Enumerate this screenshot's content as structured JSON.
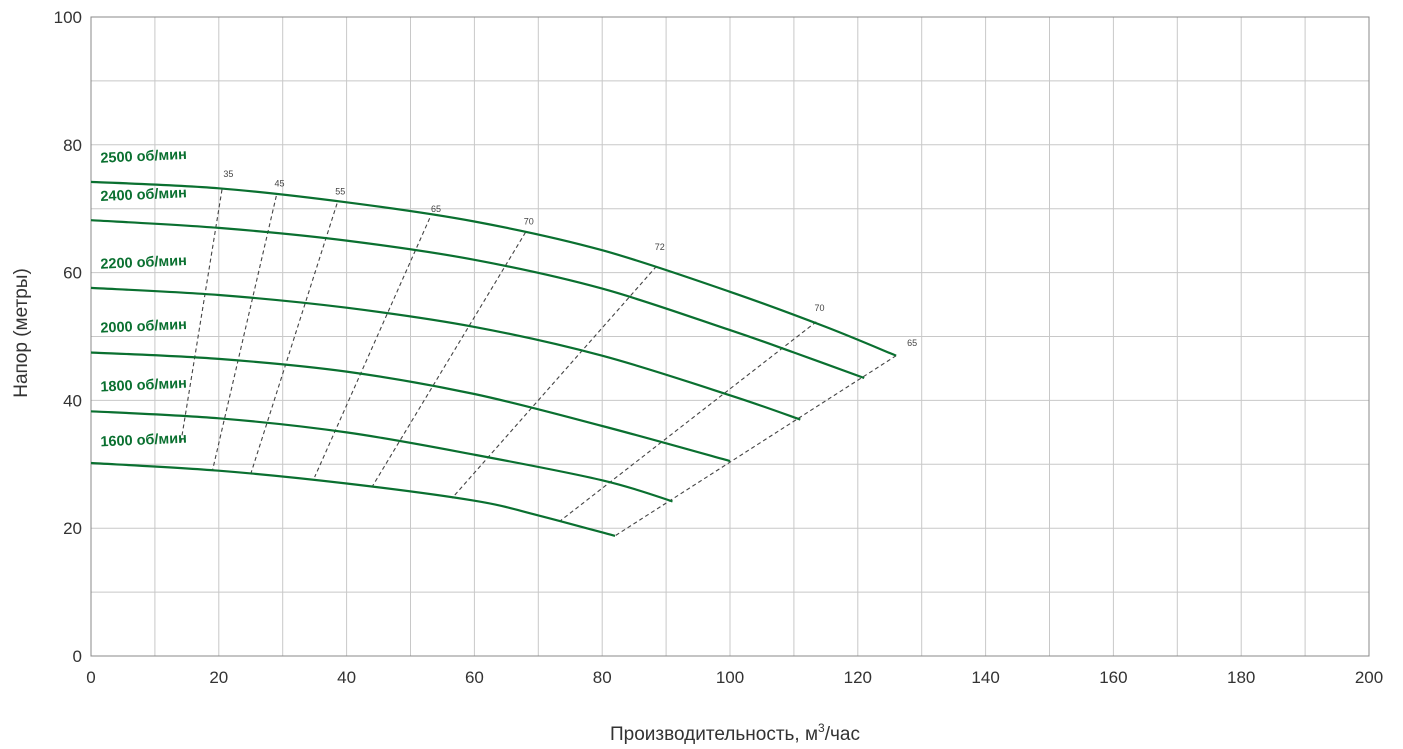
{
  "chart_data": {
    "type": "line",
    "xlabel_main": "Производительность, м",
    "xlabel_sup": "3",
    "xlabel_tail": "/час",
    "ylabel": "Напор (метры)",
    "xlim": [
      0,
      200
    ],
    "ylim": [
      0,
      100
    ],
    "x_ticks": [
      "0",
      "20",
      "40",
      "60",
      "80",
      "100",
      "120",
      "140",
      "160",
      "180",
      "200"
    ],
    "y_ticks": [
      "0",
      "20",
      "40",
      "60",
      "80",
      "100"
    ],
    "grid": true,
    "colors": {
      "curve": "#0a7030",
      "label": "#0a7030",
      "grid": "#c8c8c8",
      "frame": "#888888",
      "dash": "#444444"
    },
    "series": [
      {
        "name": "2500 об/мин",
        "label_pos": [
          1.5,
          77.2
        ],
        "points": [
          [
            0,
            74.2
          ],
          [
            20,
            73.2
          ],
          [
            40,
            71.0
          ],
          [
            60,
            68.0
          ],
          [
            80,
            63.5
          ],
          [
            100,
            57.0
          ],
          [
            115,
            51.5
          ],
          [
            126,
            47.0
          ]
        ]
      },
      {
        "name": "2400 об/мин",
        "label_pos": [
          1.5,
          71.2
        ],
        "points": [
          [
            0,
            68.2
          ],
          [
            20,
            67.0
          ],
          [
            40,
            65.0
          ],
          [
            60,
            62.0
          ],
          [
            80,
            57.5
          ],
          [
            100,
            51.0
          ],
          [
            110,
            47.5
          ],
          [
            121,
            43.5
          ]
        ]
      },
      {
        "name": "2200 об/мин",
        "label_pos": [
          1.5,
          60.6
        ],
        "points": [
          [
            0,
            57.6
          ],
          [
            20,
            56.5
          ],
          [
            40,
            54.5
          ],
          [
            60,
            51.5
          ],
          [
            80,
            47.0
          ],
          [
            100,
            40.8
          ],
          [
            111,
            37.0
          ]
        ]
      },
      {
        "name": "2000 об/мин",
        "label_pos": [
          1.5,
          50.6
        ],
        "points": [
          [
            0,
            47.5
          ],
          [
            20,
            46.5
          ],
          [
            40,
            44.5
          ],
          [
            60,
            41.0
          ],
          [
            80,
            36.0
          ],
          [
            100,
            30.5
          ]
        ]
      },
      {
        "name": "1800 об/мин",
        "label_pos": [
          1.5,
          41.4
        ],
        "points": [
          [
            0,
            38.3
          ],
          [
            20,
            37.2
          ],
          [
            40,
            35.0
          ],
          [
            60,
            31.5
          ],
          [
            80,
            27.5
          ],
          [
            91,
            24.2
          ]
        ]
      },
      {
        "name": "1600 об/мин",
        "label_pos": [
          1.5,
          32.8
        ],
        "points": [
          [
            0,
            30.2
          ],
          [
            20,
            29.0
          ],
          [
            40,
            27.0
          ],
          [
            60,
            24.3
          ],
          [
            70,
            22.0
          ],
          [
            82,
            18.8
          ]
        ]
      }
    ],
    "efficiency_lines": [
      {
        "label": "35",
        "label_pos": [
          21.5,
          75.0
        ],
        "points": [
          [
            20.5,
            73.0
          ],
          [
            14,
            33.0
          ]
        ]
      },
      {
        "label": "45",
        "label_pos": [
          29.5,
          73.5
        ],
        "points": [
          [
            29,
            72.0
          ],
          [
            19,
            29.0
          ]
        ]
      },
      {
        "label": "55",
        "label_pos": [
          39,
          72.2
        ],
        "points": [
          [
            38.5,
            70.8
          ],
          [
            25,
            28.5
          ]
        ]
      },
      {
        "label": "65",
        "label_pos": [
          54,
          69.5
        ],
        "points": [
          [
            53,
            68.5
          ],
          [
            35,
            28.0
          ]
        ]
      },
      {
        "label": "70",
        "label_pos": [
          68.5,
          67.5
        ],
        "points": [
          [
            68,
            66.3
          ],
          [
            44,
            26.5
          ]
        ]
      },
      {
        "label": "72",
        "label_pos": [
          89,
          63.5
        ],
        "points": [
          [
            88.5,
            61.0
          ],
          [
            56.5,
            24.7
          ]
        ]
      },
      {
        "label": "70",
        "label_pos": [
          114,
          54.0
        ],
        "points": [
          [
            113.5,
            52.3
          ],
          [
            73.5,
            21.2
          ]
        ]
      },
      {
        "label": "65",
        "label_pos": [
          128.5,
          48.5
        ],
        "points": [
          [
            126,
            47.0
          ],
          [
            82,
            18.8
          ]
        ]
      }
    ]
  }
}
